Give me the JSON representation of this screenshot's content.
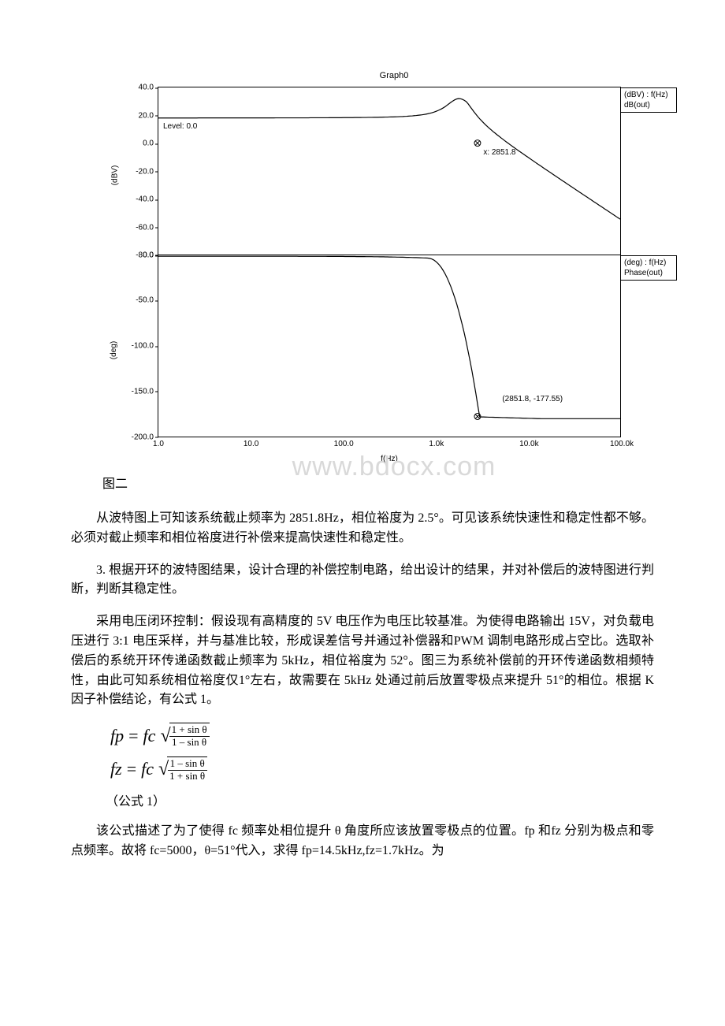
{
  "chart": {
    "title": "Graph0",
    "x_label": "f(Hz)",
    "background": "#ffffff",
    "curve_color": "#000000",
    "border_color": "#000000",
    "tick_fontsize": 10,
    "title_fontsize": 11,
    "annotation_level": "Level: 0.0",
    "annotation_x": "x: 2851.8",
    "magnitude": {
      "legend_header": "(dBV) : f(Hz)",
      "legend_label": "dB(out)",
      "y_axis_label": "(dBV)",
      "ylim": [
        -80,
        40
      ],
      "ytick_step": 20,
      "yticks": [
        40,
        20,
        0,
        -20,
        -40,
        -60,
        -80
      ],
      "marker_x": 2851.8,
      "marker_y": 0
    },
    "phase": {
      "legend_header": "(deg) : f(Hz)",
      "legend_label": "Phase(out)",
      "y_axis_label": "(deg)",
      "ylim": [
        -200,
        0
      ],
      "ytick_step": 50,
      "yticks": [
        0,
        -50,
        -100,
        -150,
        -200
      ],
      "marker_label": "(2851.8, -177.55)",
      "marker_x": 2851.8,
      "marker_y": -177.55
    },
    "x_axis": {
      "scale": "log",
      "xlim": [
        1,
        100000
      ],
      "ticks": [
        "1.0",
        "10.0",
        "100.0",
        "1.0k",
        "10.0k",
        "100.0k"
      ],
      "tick_positions": [
        1,
        10,
        100,
        1000,
        10000,
        100000
      ]
    },
    "watermark": "www.bdocx.com"
  },
  "caption": "图二",
  "para1": "从波特图上可知该系统截止频率为 2851.8Hz，相位裕度为 2.5°。可见该系统快速性和稳定性都不够。必须对截止频率和相位裕度进行补偿来提高快速性和稳定性。",
  "para2": "3.  根据开环的波特图结果，设计合理的补偿控制电路，给出设计的结果，并对补偿后的波特图进行判断，判断其稳定性。",
  "para3": "采用电压闭环控制：假设现有高精度的 5V 电压作为电压比较基准。为使得电路输出 15V，对负载电压进行 3:1 电压采样，并与基准比较，形成误差信号并通过补偿器和PWM 调制电路形成占空比。选取补偿后的系统开环传递函数截止频率为 5kHz，相位裕度为 52°。图三为系统补偿前的开环传递函数相频特性，由此可知系统相位裕度仅1°左右，故需要在 5kHz 处通过前后放置零极点来提升 51°的相位。根据 K 因子补偿结论，有公式 1。",
  "formula": {
    "fp_lhs": "fp",
    "fz_lhs": "fz",
    "rhs_var": "fc",
    "num1": "1 + sin θ",
    "den1": "1 – sin θ",
    "num2": "1 – sin θ",
    "den2": "1 + sin θ",
    "label": "（公式 1）"
  },
  "para4": "该公式描述了为了使得 fc 频率处相位提升 θ 角度所应该放置零极点的位置。fp 和fz 分别为极点和零点频率。故将 fc=5000，θ=51°代入，求得 fp=14.5kHz,fz=1.7kHz。为"
}
